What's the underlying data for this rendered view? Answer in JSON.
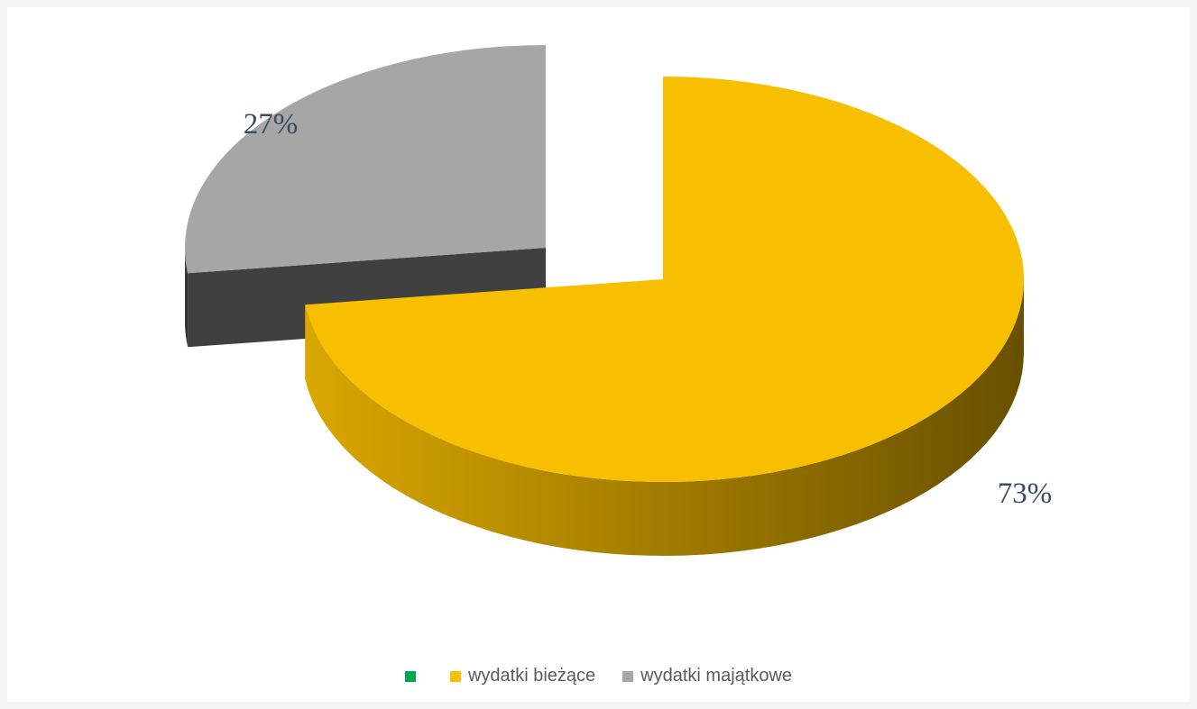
{
  "chart_data": {
    "type": "pie",
    "variant": "3d-exploded",
    "slices": [
      {
        "label": "wydatki bieżące",
        "value": 73,
        "display": "73%",
        "color": "#f8be00"
      },
      {
        "label": "wydatki majątkowe",
        "value": 27,
        "display": "27%",
        "color": "#a6a6a6"
      }
    ],
    "legend_placement": "bottom",
    "legend": [
      {
        "label": "",
        "color": "#00a651"
      },
      {
        "label": "wydatki bieżące",
        "color": "#f8be00"
      },
      {
        "label": "wydatki majątkowe",
        "color": "#a6a6a6"
      }
    ]
  }
}
